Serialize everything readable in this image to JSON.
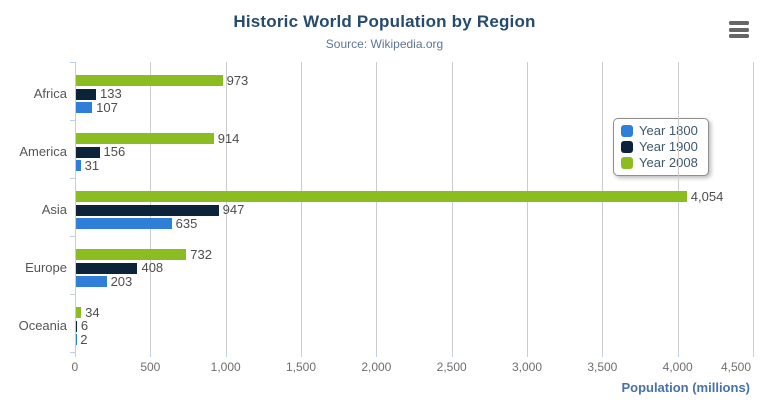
{
  "chart_data": {
    "type": "bar",
    "title": "Historic World Population by Region",
    "subtitle": "Source: Wikipedia.org",
    "categories": [
      "Africa",
      "America",
      "Asia",
      "Europe",
      "Oceania"
    ],
    "series": [
      {
        "name": "Year 1800",
        "color": "#2f7ed8",
        "values": [
          107,
          31,
          635,
          203,
          2
        ]
      },
      {
        "name": "Year 1900",
        "color": "#0d233a",
        "values": [
          133,
          156,
          947,
          408,
          6
        ]
      },
      {
        "name": "Year 2008",
        "color": "#8bbc21",
        "values": [
          973,
          914,
          4054,
          732,
          34
        ]
      }
    ],
    "bar_order_top_to_bottom": [
      "Year 2008",
      "Year 1900",
      "Year 1800"
    ],
    "data_labels": true,
    "xlabel": "Population (millions)",
    "ylabel": "",
    "xlim": [
      0,
      4500
    ],
    "x_ticks": [
      0,
      500,
      1000,
      1500,
      2000,
      2500,
      3000,
      3500,
      4000,
      4500
    ],
    "grid": true,
    "legend_position": "right"
  },
  "menu": {
    "icon": "hamburger-menu-icon"
  },
  "colors": {
    "title": "#274b6d",
    "subtitle": "#5d7693",
    "axis_line": "#c0d0e0",
    "gridline": "#cccccc",
    "tick_label": "#6e6e6e",
    "category_label": "#555555",
    "data_label": "#4d4d4d",
    "legend_text": "#3e576f",
    "axis_title": "#4572a7",
    "menu_icon": "#666666"
  }
}
